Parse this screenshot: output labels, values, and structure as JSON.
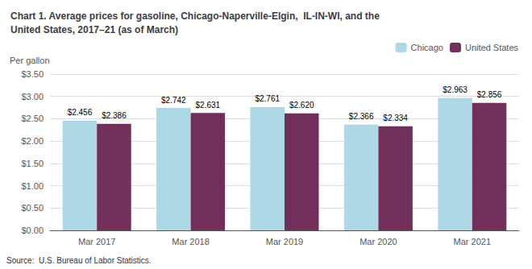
{
  "chart_data": {
    "type": "bar",
    "title": "Chart 1. Average prices for gasoline, Chicago-Naperville-Elgin,  IL-IN-WI, and the\nUnited States, 2017–21 (as of March)",
    "ylabel": "Per gallon",
    "annotations": [
      "Source:  U.S. Bureau of Labor Statistics."
    ],
    "categories": [
      "Mar 2017",
      "Mar 2018",
      "Mar 2019",
      "Mar 2020",
      "Mar 2021"
    ],
    "series": [
      {
        "name": "Chicago",
        "color": "#add8e6",
        "values": [
          2.456,
          2.742,
          2.761,
          2.366,
          2.963
        ],
        "value_labels": [
          "$2.456",
          "$2.742",
          "$2.761",
          "$2.366",
          "$2.963"
        ]
      },
      {
        "name": "United States",
        "color": "#722f5b",
        "values": [
          2.386,
          2.631,
          2.62,
          2.334,
          2.856
        ],
        "value_labels": [
          "$2.386",
          "$2.631",
          "$2.620",
          "$2.334",
          "$2.856"
        ]
      }
    ],
    "ylim": [
      0.0,
      3.5
    ],
    "yticks": [
      {
        "value": 0.0,
        "label": "$0.00"
      },
      {
        "value": 0.5,
        "label": "$0.50"
      },
      {
        "value": 1.0,
        "label": "$1.00"
      },
      {
        "value": 1.5,
        "label": "$1.50"
      },
      {
        "value": 2.0,
        "label": "$2.00"
      },
      {
        "value": 2.5,
        "label": "$2.50"
      },
      {
        "value": 3.0,
        "label": "$3.00"
      },
      {
        "value": 3.5,
        "label": "$3.50"
      }
    ],
    "grid": true,
    "legend": "upper right",
    "data_labels": true
  }
}
